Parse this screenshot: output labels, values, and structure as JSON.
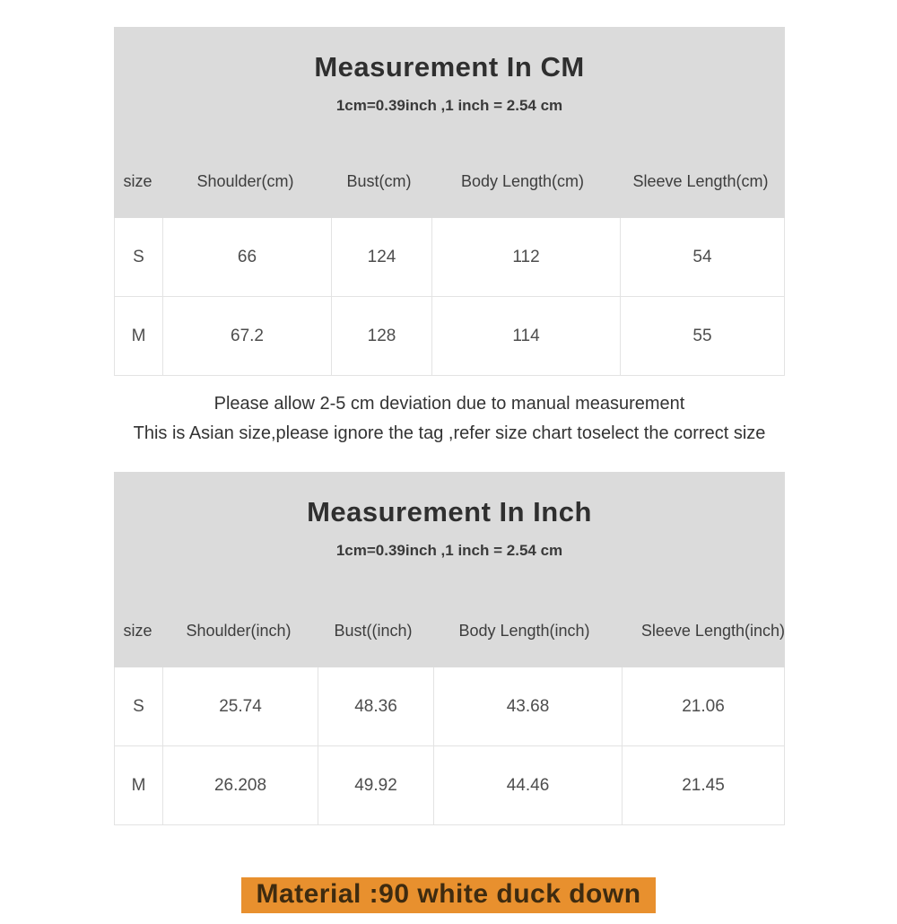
{
  "sections": [
    {
      "title": "Measurement In CM",
      "subtitle": "1cm=0.39inch ,1 inch = 2.54 cm",
      "columns": [
        "size",
        "Shoulder(cm)",
        "Bust(cm)",
        "Body Length(cm)",
        "Sleeve Length(cm)"
      ],
      "rows": [
        {
          "size": "S",
          "values": [
            "66",
            "124",
            "112",
            "54"
          ]
        },
        {
          "size": "M",
          "values": [
            "67.2",
            "128",
            "114",
            "55"
          ]
        }
      ]
    },
    {
      "title": "Measurement In Inch",
      "subtitle": "1cm=0.39inch ,1 inch = 2.54 cm",
      "columns": [
        "size",
        "Shoulder(inch)",
        "Bust((inch)",
        "Body Length(inch)",
        "Sleeve Length(inch)"
      ],
      "rows": [
        {
          "size": "S",
          "values": [
            "25.74",
            "48.36",
            "43.68",
            "21.06"
          ]
        },
        {
          "size": "M",
          "values": [
            "26.208",
            "49.92",
            "44.46",
            "21.45"
          ]
        }
      ]
    }
  ],
  "notes": [
    "Please allow 2-5 cm deviation due to manual measurement",
    "This is Asian size,please ignore the tag ,refer size chart toselect the correct size"
  ],
  "material": "Material :90 white duck down",
  "colors": {
    "header_block_bg": "#dbdbdb",
    "table_border": "#e3e3e3",
    "highlight_bg": "#e8902e",
    "highlight_text": "#3e2b10",
    "body_text": "#3f3f3f"
  }
}
